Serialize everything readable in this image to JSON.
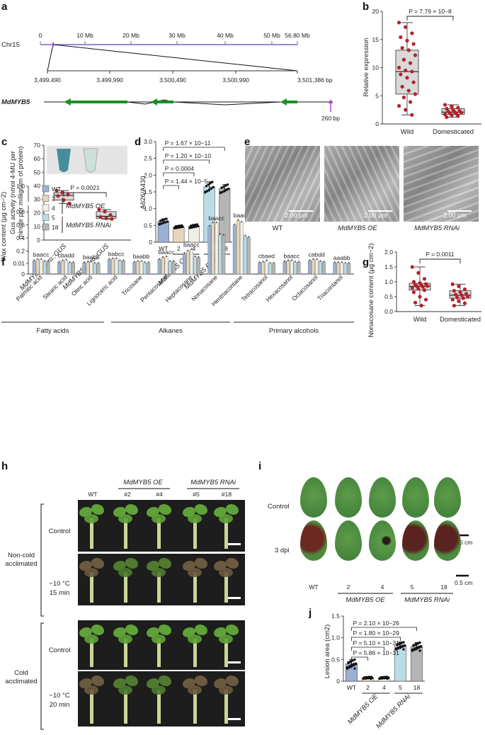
{
  "panels": {
    "a": "a",
    "b": "b",
    "c": "c",
    "d": "d",
    "e": "e",
    "f": "f",
    "g": "g",
    "h": "h",
    "i": "i",
    "j": "j"
  },
  "panel_a": {
    "chrom": "Chr15",
    "ticks": [
      "0",
      "10 Mb",
      "20 Mb",
      "30 Mb",
      "40 Mb",
      "50 Mb",
      "56.80 Mb"
    ],
    "zoom_ticks": [
      "3,499,490",
      "3,499,990",
      "3,500,490",
      "3,500,990",
      "3,501,386 bp"
    ],
    "gene": "MdMYB5",
    "insert": "260 bp"
  },
  "panel_e": {
    "scale": [
      "2.00 µm",
      "2.00 µm",
      "2.00 µm"
    ],
    "labels": [
      "WT",
      "MdMYB5 OE",
      "MdMYB5 RNAi"
    ]
  },
  "panel_h": {
    "group_oe": "MdMYB5 OE",
    "group_rnai": "MdMYB5 RNAi",
    "lines": [
      "WT",
      "#2",
      "#4",
      "#5",
      "#18"
    ],
    "row_labels": [
      "Control",
      "−10 °C\n15 min",
      "Control",
      "−10 °C\n20 min"
    ],
    "row_labels_a": [
      "Control",
      "−10 °C",
      "15 min",
      "Control",
      "−10 °C",
      "20 min"
    ],
    "block_labels": [
      "Non-cold",
      "acclimated",
      "Cold",
      "acclimated"
    ]
  },
  "panel_i": {
    "rows": [
      "Control",
      "3 dpi"
    ],
    "scale": [
      "0.5 cm",
      "0.5 cm"
    ],
    "lines": [
      "WT",
      "2",
      "4",
      "5",
      "18"
    ],
    "groups": [
      "MdMYB5 OE",
      "MdMYB5 RNAi"
    ]
  },
  "chart_data": [
    {
      "id": "b",
      "type": "box",
      "ylabel": "Relative expression",
      "ylim": [
        0,
        20
      ],
      "yticks": [
        0,
        5,
        10,
        15,
        20
      ],
      "categories": [
        "Wild",
        "Domesticated"
      ],
      "annotation": "P = 7.79 × 10−8",
      "boxes": [
        {
          "min": 1.6,
          "q1": 5.3,
          "median": 9.3,
          "q3": 13.1,
          "max": 18.0,
          "points": [
            18.0,
            17.2,
            16.1,
            15.4,
            14.8,
            14.2,
            13.5,
            13.1,
            12.2,
            11.4,
            10.8,
            10.0,
            9.5,
            9.3,
            8.8,
            8.2,
            7.4,
            6.6,
            5.9,
            5.3,
            4.7,
            3.9,
            3.2,
            2.5,
            1.6
          ]
        },
        {
          "min": 1.2,
          "q1": 1.7,
          "median": 2.1,
          "q3": 2.7,
          "max": 3.4,
          "points": [
            3.4,
            3.1,
            2.9,
            2.7,
            2.5,
            2.3,
            2.2,
            2.1,
            2.0,
            1.9,
            1.8,
            1.7,
            1.6,
            1.4,
            1.2
          ]
        }
      ]
    },
    {
      "id": "c",
      "type": "box",
      "ylabel": "Gus activity (nmol 4-MU per minute per milligram of protein)",
      "ylim": [
        0,
        70
      ],
      "yticks": [
        0,
        10,
        20,
        30,
        40,
        50,
        60,
        70
      ],
      "categories": [
        "MdMYB5C pro::GUS",
        "MdMYB5T pro::GUS"
      ],
      "annotation": "P = 0.0021",
      "boxes": [
        {
          "min": 27,
          "q1": 29.5,
          "median": 33,
          "q3": 35,
          "max": 36.5,
          "points": [
            36.5,
            35,
            33.5,
            32.5,
            29.5,
            27
          ]
        },
        {
          "min": 15.5,
          "q1": 16,
          "median": 17.5,
          "q3": 21,
          "max": 22.5,
          "points": [
            22.5,
            21,
            18.5,
            17,
            16,
            15.5
          ]
        }
      ]
    },
    {
      "id": "d",
      "type": "bar",
      "ylabel": "A626/A430",
      "ylim": [
        0,
        3.0
      ],
      "yticks": [
        0,
        0.5,
        1.0,
        1.5,
        2.0,
        2.5,
        3.0
      ],
      "categories": [
        "WT",
        "2",
        "4",
        "5",
        "18"
      ],
      "groups": [
        "MdMYB5 OE",
        "MdMYB5 RNAi"
      ],
      "values": [
        0.62,
        0.46,
        0.48,
        1.65,
        1.6
      ],
      "errors": [
        0.08,
        0.04,
        0.05,
        0.15,
        0.12
      ],
      "annotations": [
        "P = 1.67 × 10−11",
        "P = 1.20 × 10−10",
        "P = 0.0004",
        "P = 1.44 × 10−5"
      ],
      "colors": [
        "#9bb0d4",
        "#e6d5b8",
        "#f2f0e6",
        "#b9dce6",
        "#b5b5b5"
      ]
    },
    {
      "id": "f",
      "type": "bar",
      "ylabel": "Wax content (µg cm−2)",
      "yticks": [
        "0",
        "0.01",
        "0.2",
        "0.4",
        "0.6",
        "0.8",
        "1.0"
      ],
      "legend": [
        "WT",
        "2",
        "4",
        "5",
        "18"
      ],
      "legend_groups": [
        "MdMYB5 OE",
        "MdMYB5 RNAi"
      ],
      "categories": [
        "Palmitic acid",
        "Stearic acid",
        "Oleic acid",
        "Lignoceric acid",
        "Tricosane",
        "Pentacosane",
        "Heptacosane",
        "Nonacosane",
        "Hentriacontane",
        "Tetracosanol",
        "Hexacosanol",
        "Octacosanol",
        "Triacontanol"
      ],
      "class_labels": [
        "Fatty acids",
        "Alkanes",
        "Primary alcohols"
      ],
      "letters": [
        "baacc",
        "cbadd",
        "baabb",
        "babcc",
        "baabb",
        "baacc",
        "baacc",
        "baacc",
        "baacc",
        "cbaed",
        "baacc",
        "cabdd",
        "aaabb"
      ],
      "series": [
        {
          "name": "WT",
          "values": [
            0.05,
            0.03,
            0.02,
            0.07,
            0.03,
            0.07,
            0.16,
            0.58,
            0.6,
            0.02,
            0.04,
            0.05,
            0.02
          ]
        },
        {
          "name": "2",
          "values": [
            0.07,
            0.05,
            0.03,
            0.08,
            0.04,
            0.1,
            0.2,
            0.63,
            0.67,
            0.03,
            0.05,
            0.07,
            0.02
          ]
        },
        {
          "name": "4",
          "values": [
            0.07,
            0.06,
            0.03,
            0.08,
            0.04,
            0.11,
            0.22,
            0.63,
            0.64,
            0.05,
            0.05,
            0.07,
            0.02
          ]
        },
        {
          "name": "5",
          "values": [
            0.04,
            0.02,
            0.01,
            0.05,
            0.02,
            0.04,
            0.11,
            0.45,
            0.43,
            0.01,
            0.03,
            0.04,
            0.01
          ]
        },
        {
          "name": "18",
          "values": [
            0.04,
            0.02,
            0.01,
            0.05,
            0.02,
            0.04,
            0.1,
            0.44,
            0.41,
            0.01,
            0.03,
            0.03,
            0.01
          ]
        }
      ]
    },
    {
      "id": "g",
      "type": "box",
      "ylabel": "Nonacosane content (µg cm−2)",
      "ylim": [
        0,
        2.0
      ],
      "yticks": [
        0,
        0.5,
        1.0,
        1.5,
        2.0
      ],
      "categories": [
        "Wild",
        "Domesticated"
      ],
      "annotation": "P = 0.0011",
      "boxes": [
        {
          "min": 0.2,
          "q1": 0.72,
          "median": 0.85,
          "q3": 0.95,
          "max": 1.5,
          "points": [
            1.5,
            1.3,
            1.1,
            1.0,
            0.96,
            0.93,
            0.9,
            0.88,
            0.86,
            0.85,
            0.83,
            0.8,
            0.77,
            0.72,
            0.65,
            0.5,
            0.4,
            0.3,
            0.2
          ]
        },
        {
          "min": 0.2,
          "q1": 0.45,
          "median": 0.55,
          "q3": 0.7,
          "max": 0.92,
          "points": [
            0.92,
            0.85,
            0.75,
            0.7,
            0.65,
            0.6,
            0.57,
            0.55,
            0.5,
            0.47,
            0.45,
            0.4,
            0.35,
            0.28,
            0.2
          ]
        }
      ]
    },
    {
      "id": "j",
      "type": "bar",
      "ylabel": "Lesion area (cm2)",
      "ylim": [
        0,
        1.5
      ],
      "yticks": [
        0,
        0.5,
        1.0,
        1.5
      ],
      "categories": [
        "WT",
        "2",
        "4",
        "5",
        "18"
      ],
      "groups": [
        "MdMYB5 OE",
        "MdMYB5 RNAi"
      ],
      "values": [
        0.4,
        0.08,
        0.08,
        0.82,
        0.8
      ],
      "errors": [
        0.1,
        0.02,
        0.02,
        0.08,
        0.09
      ],
      "annotations": [
        "P = 2.10 × 10−26",
        "P = 1.80 × 10−29",
        "P = 5.10 × 10−31",
        "P = 5.86 × 10−31"
      ],
      "colors": [
        "#9bb0d4",
        "#e6d5b8",
        "#f2f0e6",
        "#b9dce6",
        "#b5b5b5"
      ]
    }
  ]
}
